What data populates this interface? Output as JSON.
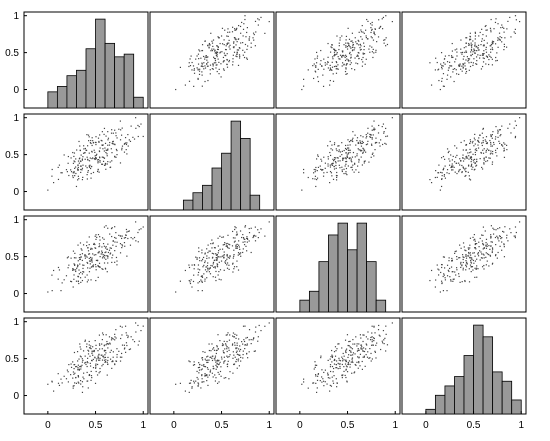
{
  "chart_data": {
    "type": "scatter",
    "layout": "scatter-matrix",
    "variables": 4,
    "grid": false,
    "colors": {
      "bar_fill": "#999999",
      "point": "#444444",
      "frame": "#000000"
    },
    "axis_range": [
      -0.25,
      1.05
    ],
    "y_ticks": [
      0,
      0.5,
      1
    ],
    "y_tick_labels": [
      "0",
      "0.5",
      "1"
    ],
    "x_ticks": [
      0,
      0.5,
      1
    ],
    "x_tick_labels": [
      "0",
      "0.5",
      "1"
    ],
    "histogram_bin_width": 0.1,
    "histograms": [
      {
        "variable": 1,
        "bins": [
          0,
          0.1,
          0.2,
          0.3,
          0.4,
          0.5,
          0.6,
          0.7,
          0.8,
          0.9
        ],
        "counts": [
          6,
          8,
          12,
          14,
          22,
          33,
          24,
          19,
          20,
          4
        ]
      },
      {
        "variable": 2,
        "bins": [
          0.1,
          0.2,
          0.3,
          0.4,
          0.5,
          0.6,
          0.7,
          0.8
        ],
        "counts": [
          4,
          7,
          10,
          17,
          23,
          36,
          29,
          6
        ]
      },
      {
        "variable": 3,
        "bins": [
          0,
          0.1,
          0.2,
          0.3,
          0.4,
          0.5,
          0.6,
          0.7,
          0.8,
          0.9
        ],
        "counts": [
          4,
          7,
          17,
          26,
          30,
          21,
          30,
          17,
          4,
          0
        ]
      },
      {
        "variable": 4,
        "bins": [
          0,
          0.1,
          0.2,
          0.3,
          0.4,
          0.5,
          0.6,
          0.7,
          0.8,
          0.9
        ],
        "counts": [
          2,
          8,
          12,
          16,
          25,
          38,
          33,
          18,
          14,
          6
        ]
      }
    ],
    "scatter_points_per_panel": 250,
    "scatter_relationship": "strong positive correlation between every pair of variables, values spread from about 0 to 1"
  }
}
